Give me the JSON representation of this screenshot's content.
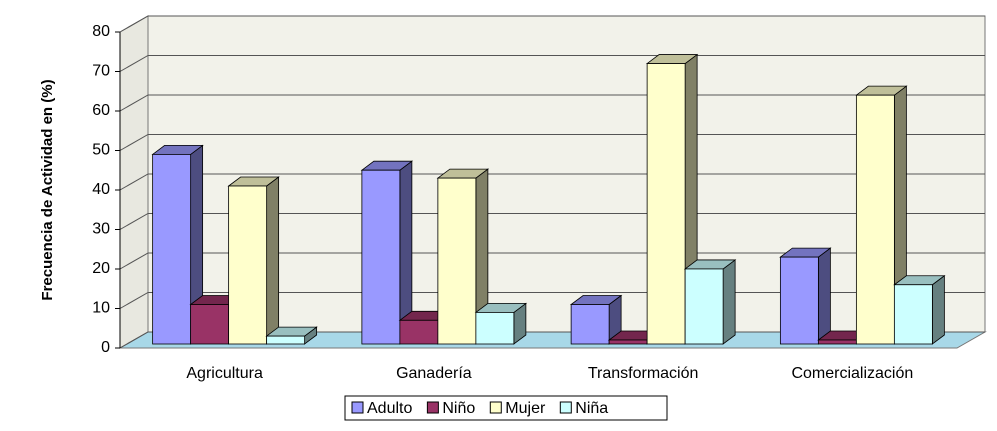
{
  "chart_data": {
    "type": "bar3d",
    "y_label": "Frecuencia de Actividad en (%)",
    "categories": [
      "Agricultura",
      "Ganadería",
      "Transformación",
      "Comercialización"
    ],
    "series": [
      {
        "name": "Adulto",
        "color": "#9999ff",
        "values": [
          48,
          44,
          10,
          22
        ]
      },
      {
        "name": "Niño",
        "color": "#993366",
        "values": [
          10,
          6,
          0,
          0
        ]
      },
      {
        "name": "Mujer",
        "color": "#ffffcc",
        "values": [
          40,
          42,
          71,
          63
        ]
      },
      {
        "name": "Niña",
        "color": "#ccffff",
        "values": [
          2,
          8,
          19,
          15
        ]
      }
    ],
    "ylim": [
      0,
      80
    ],
    "yticks": [
      0,
      10,
      20,
      30,
      40,
      50,
      60,
      70,
      80
    ],
    "grid": true,
    "legend": "bottom"
  }
}
